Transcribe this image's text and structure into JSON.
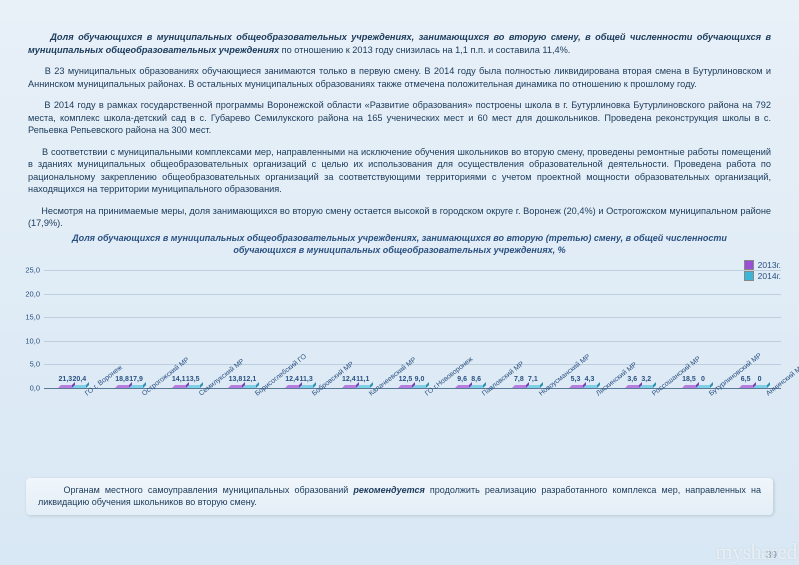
{
  "paragraphs": {
    "p1_bold": "Доля обучающихся в муниципальных общеобразовательных учреждениях, занимающихся во вторую смену, в общей численности обучающихся в муниципальных общеобразовательных учреждениях",
    "p1_rest": " по отношению к 2013 году снизилась на 1,1 п.п. и составила 11,4%.",
    "p2": "В 23 муниципальных образованиях обучающиеся занимаются только в первую смену. В 2014 году была полностью ликвидирована вторая смена в Бутурлиновском и Аннинском муниципальных районах. В остальных муниципальных образованиях также отмечена положительная динамика по отношению к прошлому году.",
    "p3": "В 2014 году в рамках государственной программы Воронежской области «Развитие образования» построены школа в г. Бутурлиновка Бутурлиновского района на 792 места, комплекс школа-детский сад в с. Губарево Семилукского района на 165 ученических мест и 60 мест для дошкольников. Проведена реконструкция школы в с. Репьевка Репьевского района на 300 мест.",
    "p4": "В соответствии с муниципальными комплексами мер, направленными на исключение обучения школьников во вторую смену, проведены ремонтные работы помещений в зданиях муниципальных общеобразовательных организаций с целью их использования для осуществления образовательной деятельности. Проведена работа по рациональному закреплению общеобразовательных организаций за соответствующими территориями с учетом проектной мощности образовательных организаций, находящихся на территории муниципального образования.",
    "p5": "Несмотря на принимаемые меры, доля занимающихся во вторую смену остается высокой в городском округе г. Воронеж (20,4%) и Острогожском муниципальном районе (17,9%)."
  },
  "chart": {
    "title": "Доля обучающихся в муниципальных общеобразовательных учреждениях, занимающихся во вторую (третью) смену, в общей численности обучающихся в муниципальных общеобразовательных учреждениях, %",
    "type": "bar",
    "legend": [
      {
        "label": "2013г.",
        "color": "#9b4fd4",
        "top": "#b87de0",
        "side": "#7a3ab0"
      },
      {
        "label": "2014г.",
        "color": "#3fb5d6",
        "top": "#7fd0e6",
        "side": "#2a8fb0"
      }
    ],
    "ylim": [
      0,
      25
    ],
    "ytick_step": 5,
    "yticks": [
      "0,0",
      "5,0",
      "10,0",
      "15,0",
      "20,0",
      "25,0"
    ],
    "categories": [
      "ГО г. Воронеж",
      "Острогожский МР",
      "Семилукский МР",
      "Борисоглебский ГО",
      "Бобровский МР",
      "Калачеевский МР",
      "ГО г.Нововоронеж",
      "Павловский МР",
      "Новоусманский МР",
      "Лискинский МР",
      "Россошанский МР",
      "Бутурлиновский МР",
      "Аннинский МР"
    ],
    "series": [
      {
        "key": "2013",
        "values": [
          21.3,
          18.8,
          14.1,
          13.8,
          12.4,
          12.4,
          12.5,
          9.6,
          7.8,
          5.3,
          3.6,
          18.5,
          6.5
        ]
      },
      {
        "key": "2014",
        "values": [
          20.4,
          17.9,
          13.5,
          12.1,
          11.3,
          11.1,
          9.0,
          8.6,
          7.1,
          4.3,
          3.2,
          0,
          0
        ]
      }
    ],
    "value_labels_2013": [
      "21,3",
      "18,8",
      "14,1",
      "13,8",
      "12,4",
      "12,4",
      "12,5",
      "9,6",
      "7,8",
      "5,3",
      "3,6",
      "18,5",
      "6,5"
    ],
    "value_labels_2014": [
      "20,4",
      "17,9",
      "13,5",
      "12,1",
      "11,3",
      "11,1",
      "9,0",
      "8,6",
      "7,1",
      "4,3",
      "3,2",
      "0",
      "0"
    ],
    "grid_color": "rgba(90,120,150,0.25)",
    "background_color": "transparent"
  },
  "footer": {
    "pre": "Органам местного самоуправления муниципальных образований ",
    "bold": "рекомендуется",
    "post": " продолжить реализацию разработанного комплекса мер, направленных на ликвидацию обучения школьников во вторую смену."
  },
  "page_number": "39",
  "watermark": "myshared"
}
